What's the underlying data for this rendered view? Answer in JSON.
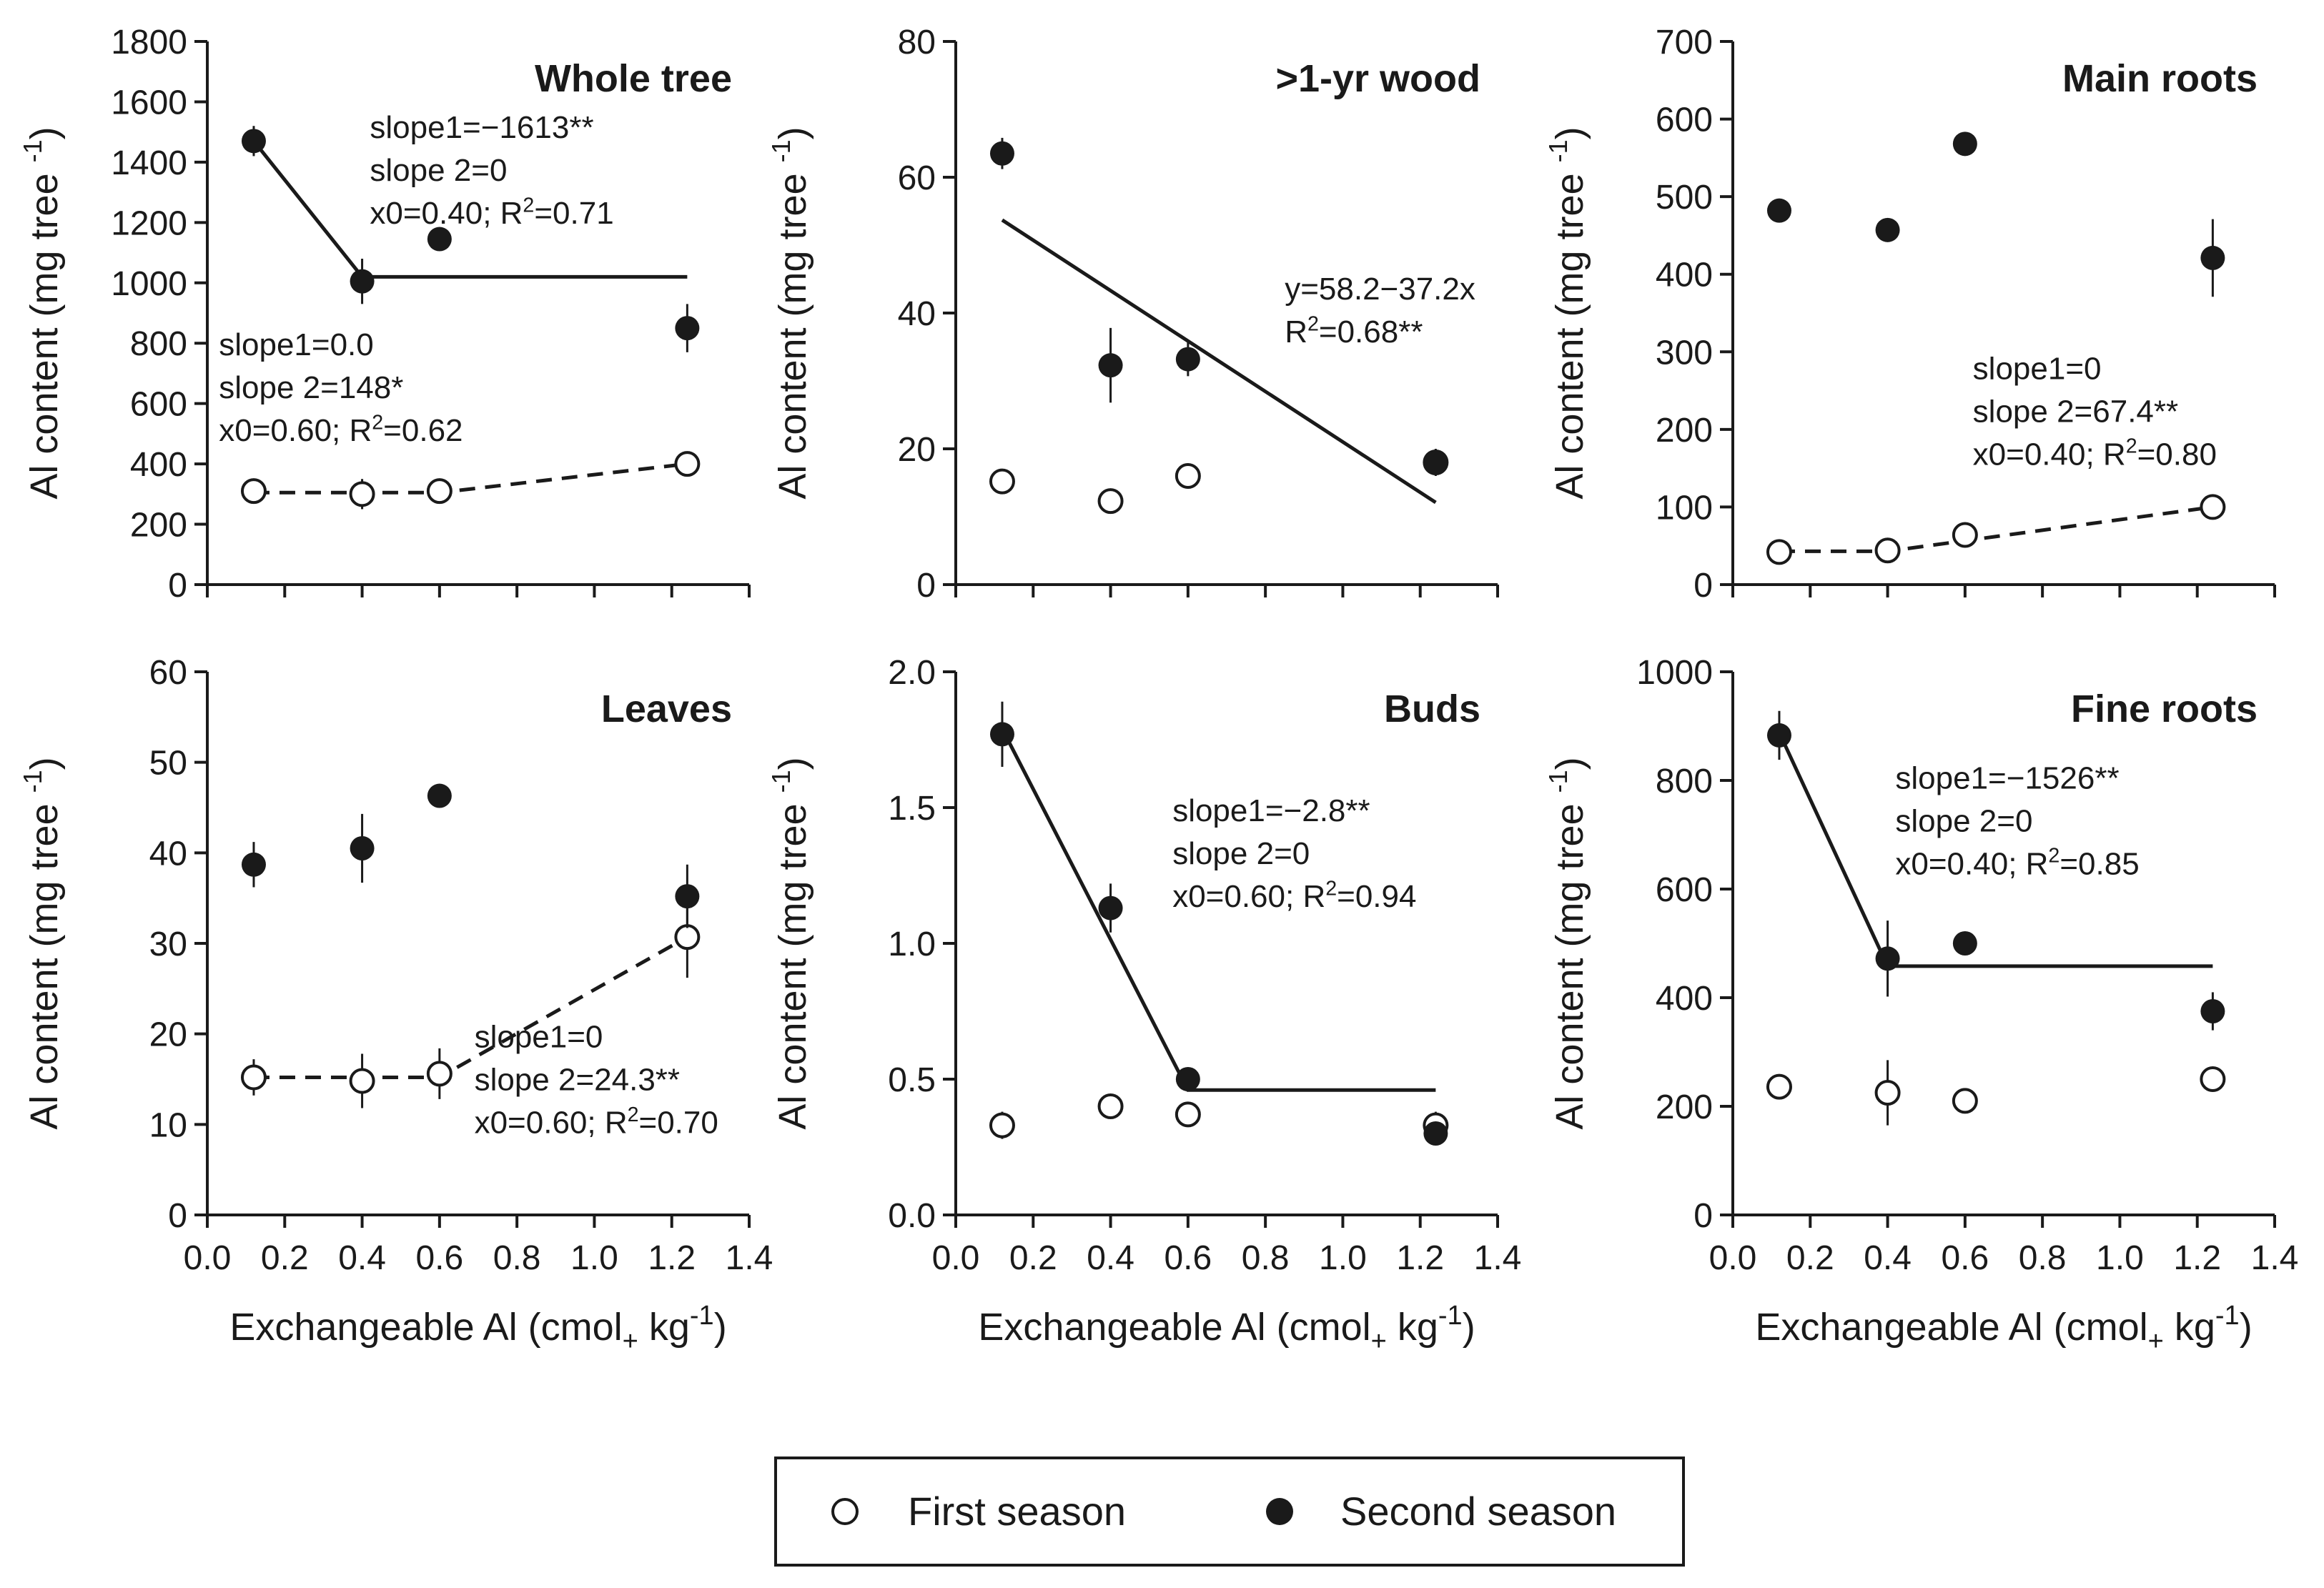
{
  "legend": {
    "first": "First season",
    "second": "Second season",
    "placement": "bottom-center"
  },
  "chart_data": [
    {
      "type": "scatter",
      "title": "Whole tree",
      "xlabel": "Exchangeable Al (cmol+ kg-1)",
      "ylabel": "Al content (mg tree -1)",
      "xlim": [
        0,
        1.4
      ],
      "xticks": [
        0.0,
        0.2,
        0.4,
        0.6,
        0.8,
        1.0,
        1.2,
        1.4
      ],
      "ylim": [
        0,
        1800
      ],
      "yticks": [
        0,
        200,
        400,
        600,
        800,
        1000,
        1200,
        1400,
        1600,
        1800
      ],
      "show_xticklabels": false,
      "series": [
        {
          "name": "First season",
          "marker": "open",
          "x": [
            0.12,
            0.4,
            0.6,
            1.24
          ],
          "y": [
            310,
            300,
            310,
            400
          ],
          "err": [
            15,
            50,
            10,
            15
          ]
        },
        {
          "name": "Second season",
          "marker": "filled",
          "x": [
            0.12,
            0.4,
            0.6,
            1.24
          ],
          "y": [
            1470,
            1005,
            1145,
            850
          ],
          "err": [
            50,
            75,
            15,
            80
          ]
        }
      ],
      "fits": [
        {
          "series": "Second season",
          "style": "solid",
          "x": [
            0.12,
            0.4,
            1.24
          ],
          "y": [
            1470,
            1020,
            1020
          ]
        },
        {
          "series": "First season",
          "style": "dashed",
          "x": [
            0.12,
            0.6,
            1.24
          ],
          "y": [
            305,
            305,
            400
          ]
        }
      ],
      "annotations": [
        {
          "lines": [
            "slope1=−1613**",
            "slope 2=0",
            "x0=0.40; R²=0.71"
          ],
          "x": 0.42,
          "y": 1480
        },
        {
          "lines": [
            "slope1=0.0",
            "slope 2=148*",
            "x0=0.60; R²=0.62"
          ],
          "x": 0.03,
          "y": 760
        }
      ]
    },
    {
      "type": "scatter",
      "title": ">1-yr wood",
      "xlabel": "Exchangeable Al (cmol+ kg-1)",
      "ylabel": "Al content (mg tree -1)",
      "xlim": [
        0,
        1.4
      ],
      "xticks": [
        0.0,
        0.2,
        0.4,
        0.6,
        0.8,
        1.0,
        1.2,
        1.4
      ],
      "ylim": [
        0,
        80
      ],
      "yticks": [
        0,
        20,
        40,
        60,
        80
      ],
      "show_xticklabels": false,
      "series": [
        {
          "name": "First season",
          "marker": "open",
          "x": [
            0.12,
            0.4,
            0.6,
            1.24
          ],
          "y": [
            15.2,
            12.3,
            16.0,
            18.0
          ],
          "err": [
            0.5,
            0.5,
            0.5,
            0.5
          ]
        },
        {
          "name": "Second season",
          "marker": "filled",
          "x": [
            0.12,
            0.4,
            0.6,
            1.24
          ],
          "y": [
            63.5,
            32.3,
            33.2,
            18.0
          ],
          "err": [
            2.3,
            5.5,
            2.5,
            2.0
          ]
        }
      ],
      "fits": [
        {
          "series": "Second season",
          "style": "solid",
          "x": [
            0.12,
            1.24
          ],
          "y": [
            53.7,
            12.1
          ]
        }
      ],
      "annotations": [
        {
          "lines": [
            "y=58.2−37.2x",
            "R²=0.68**"
          ],
          "x": 0.85,
          "y": 42
        }
      ]
    },
    {
      "type": "scatter",
      "title": "Main roots",
      "xlabel": "Exchangeable Al (cmol+ kg-1)",
      "ylabel": "Al content (mg tree -1)",
      "xlim": [
        0,
        1.4
      ],
      "xticks": [
        0.0,
        0.2,
        0.4,
        0.6,
        0.8,
        1.0,
        1.2,
        1.4
      ],
      "ylim": [
        0,
        700
      ],
      "yticks": [
        0,
        100,
        200,
        300,
        400,
        500,
        600,
        700
      ],
      "show_xticklabels": false,
      "series": [
        {
          "name": "First season",
          "marker": "open",
          "x": [
            0.12,
            0.4,
            0.6,
            1.24
          ],
          "y": [
            42,
            44,
            64,
            100
          ],
          "err": [
            3,
            3,
            3,
            3
          ]
        },
        {
          "name": "Second season",
          "marker": "filled",
          "x": [
            0.12,
            0.4,
            0.6,
            1.24
          ],
          "y": [
            482,
            457,
            568,
            421
          ],
          "err": [
            5,
            5,
            15,
            50
          ]
        }
      ],
      "fits": [
        {
          "series": "First season",
          "style": "dashed",
          "x": [
            0.12,
            0.4,
            1.24
          ],
          "y": [
            43,
            43,
            100
          ]
        }
      ],
      "annotations": [
        {
          "lines": [
            "slope1=0",
            "slope 2=67.4**",
            "x0=0.40; R²=0.80"
          ],
          "x": 0.62,
          "y": 265
        }
      ]
    },
    {
      "type": "scatter",
      "title": "Leaves",
      "xlabel": "Exchangeable Al (cmol+ kg-1)",
      "ylabel": "Al content (mg tree -1)",
      "xlim": [
        0,
        1.4
      ],
      "xticks": [
        0.0,
        0.2,
        0.4,
        0.6,
        0.8,
        1.0,
        1.2,
        1.4
      ],
      "ylim": [
        0,
        60
      ],
      "yticks": [
        0,
        10,
        20,
        30,
        40,
        50,
        60
      ],
      "show_xticklabels": true,
      "series": [
        {
          "name": "First season",
          "marker": "open",
          "x": [
            0.12,
            0.4,
            0.6,
            1.24
          ],
          "y": [
            15.2,
            14.8,
            15.6,
            30.7
          ],
          "err": [
            2.0,
            3.0,
            2.8,
            4.5
          ]
        },
        {
          "name": "Second season",
          "marker": "filled",
          "x": [
            0.12,
            0.4,
            0.6,
            1.24
          ],
          "y": [
            38.7,
            40.5,
            46.3,
            35.2
          ],
          "err": [
            2.5,
            3.8,
            0.5,
            3.5
          ]
        }
      ],
      "fits": [
        {
          "series": "First season",
          "style": "dashed",
          "x": [
            0.12,
            0.6,
            1.24
          ],
          "y": [
            15.2,
            15.2,
            30.7
          ]
        }
      ],
      "annotations": [
        {
          "lines": [
            "slope1=0",
            "slope 2=24.3**",
            "x0=0.60; R²=0.70"
          ],
          "x": 0.69,
          "y": 18.5
        }
      ]
    },
    {
      "type": "scatter",
      "title": "Buds",
      "xlabel": "Exchangeable Al (cmol+ kg-1)",
      "ylabel": "Al content (mg tree -1)",
      "xlim": [
        0,
        1.4
      ],
      "xticks": [
        0.0,
        0.2,
        0.4,
        0.6,
        0.8,
        1.0,
        1.2,
        1.4
      ],
      "ylim": [
        0,
        2.0
      ],
      "yticks": [
        0.0,
        0.5,
        1.0,
        1.5,
        2.0
      ],
      "show_xticklabels": true,
      "series": [
        {
          "name": "First season",
          "marker": "open",
          "x": [
            0.12,
            0.4,
            0.6,
            1.24
          ],
          "y": [
            0.33,
            0.4,
            0.37,
            0.33
          ],
          "err": [
            0.05,
            0.02,
            0.02,
            0.05
          ]
        },
        {
          "name": "Second season",
          "marker": "filled",
          "x": [
            0.12,
            0.4,
            0.6,
            1.24
          ],
          "y": [
            1.77,
            1.13,
            0.5,
            0.3
          ],
          "err": [
            0.12,
            0.09,
            0.02,
            0.02
          ]
        }
      ],
      "fits": [
        {
          "series": "Second season",
          "style": "solid",
          "x": [
            0.12,
            0.6,
            1.24
          ],
          "y": [
            1.79,
            0.46,
            0.46
          ]
        }
      ],
      "annotations": [
        {
          "lines": [
            "slope1=−2.8**",
            "slope 2=0",
            "x0=0.60; R²=0.94"
          ],
          "x": 0.56,
          "y": 1.45
        }
      ]
    },
    {
      "type": "scatter",
      "title": "Fine roots",
      "xlabel": "Exchangeable Al (cmol+ kg-1)",
      "ylabel": "Al content (mg tree -1)",
      "xlim": [
        0,
        1.4
      ],
      "xticks": [
        0.0,
        0.2,
        0.4,
        0.6,
        0.8,
        1.0,
        1.2,
        1.4
      ],
      "ylim": [
        0,
        1000
      ],
      "yticks": [
        0,
        200,
        400,
        600,
        800,
        1000
      ],
      "show_xticklabels": true,
      "series": [
        {
          "name": "First season",
          "marker": "open",
          "x": [
            0.12,
            0.4,
            0.6,
            1.24
          ],
          "y": [
            236,
            225,
            210,
            250
          ],
          "err": [
            5,
            60,
            5,
            5
          ]
        },
        {
          "name": "Second season",
          "marker": "filled",
          "x": [
            0.12,
            0.4,
            0.6,
            1.24
          ],
          "y": [
            883,
            472,
            500,
            375
          ],
          "err": [
            45,
            70,
            5,
            35
          ]
        }
      ],
      "fits": [
        {
          "series": "Second season",
          "style": "solid",
          "x": [
            0.12,
            0.4,
            1.24
          ],
          "y": [
            888,
            458,
            458
          ]
        }
      ],
      "annotations": [
        {
          "lines": [
            "slope1=−1526**",
            "slope 2=0",
            "x0=0.40; R²=0.85"
          ],
          "x": 0.42,
          "y": 785
        }
      ]
    }
  ]
}
